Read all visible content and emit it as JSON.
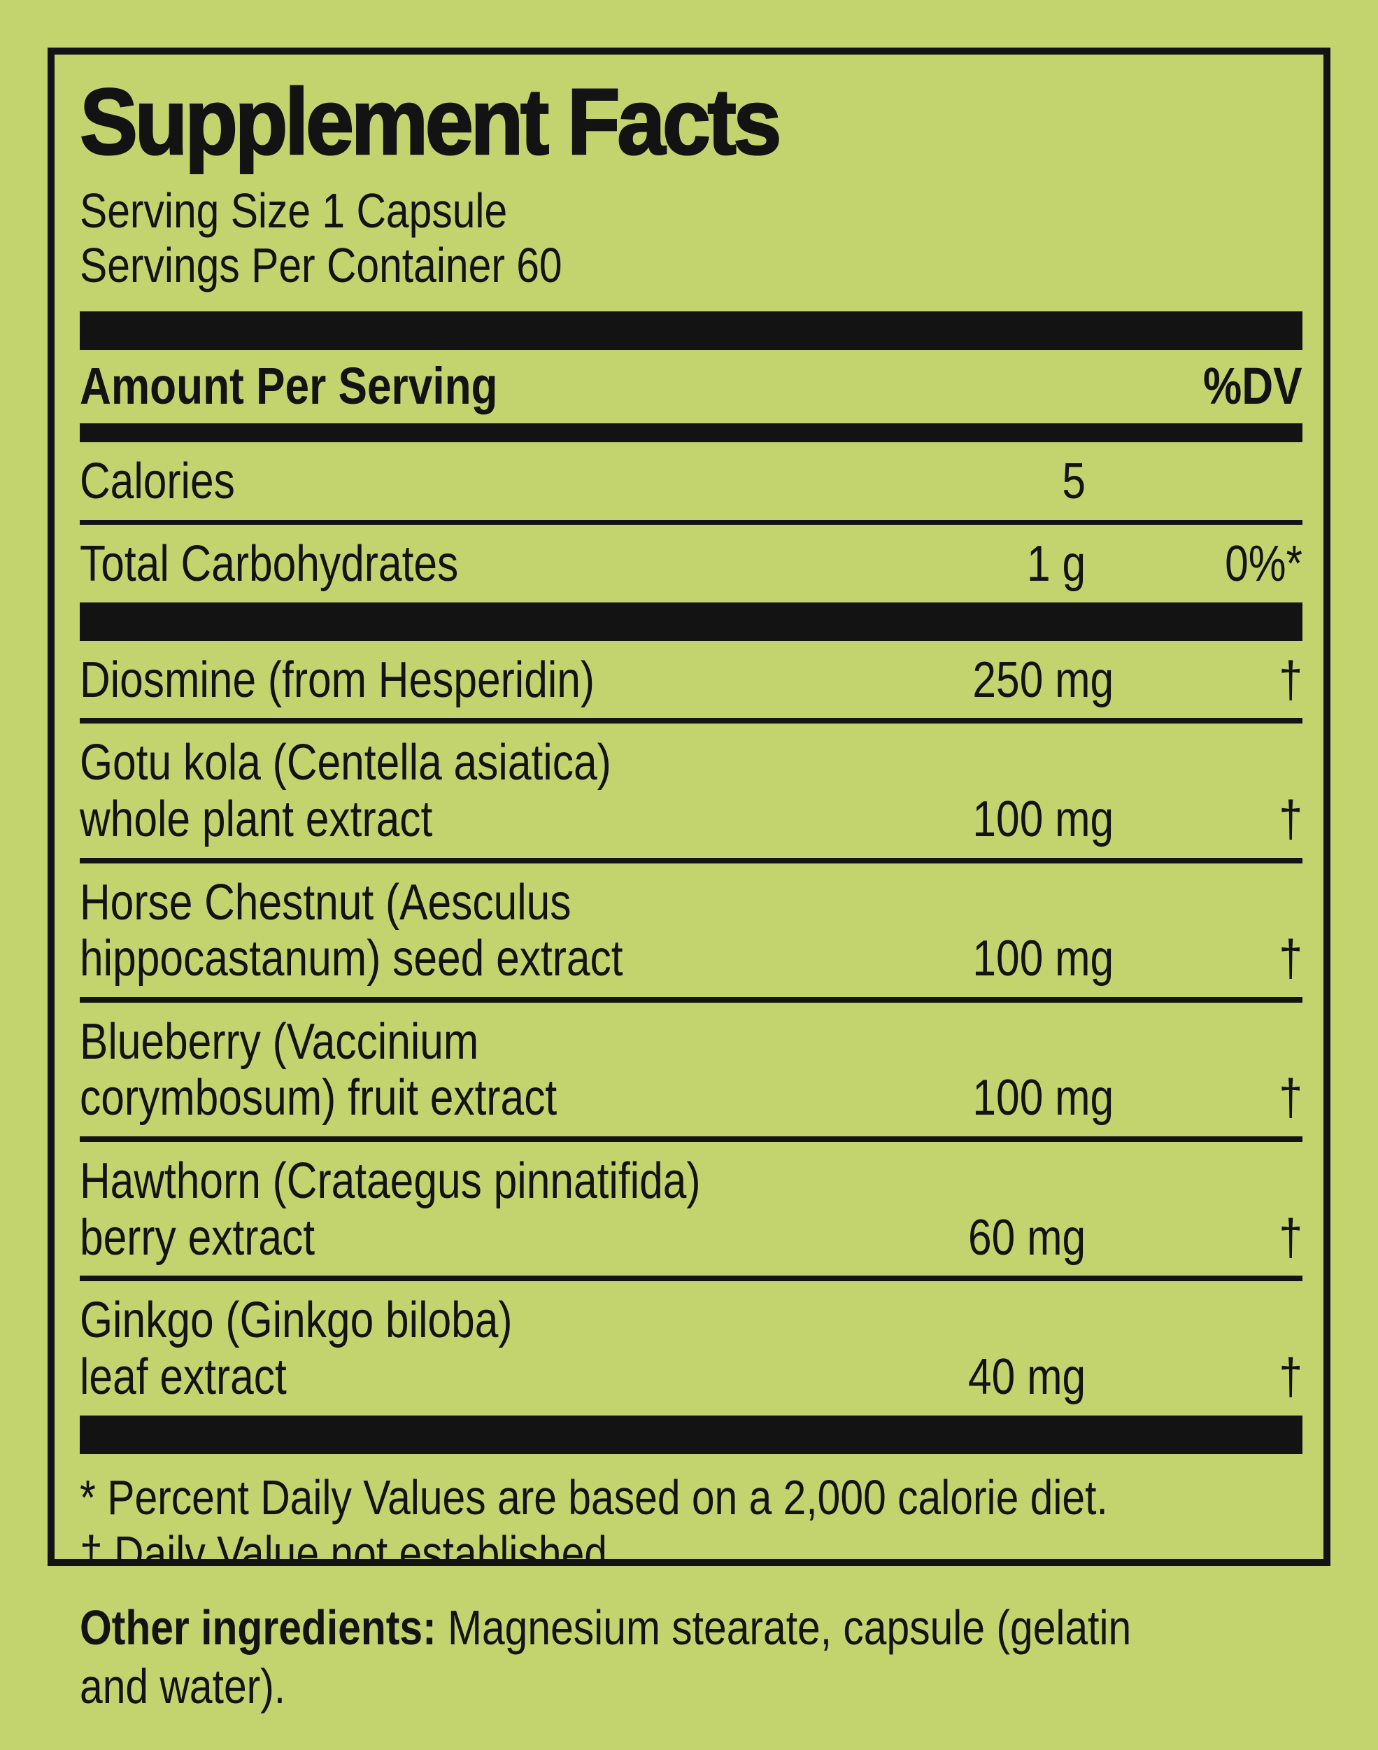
{
  "label": {
    "title": "Supplement Facts",
    "serving_size": "Serving Size 1 Capsule",
    "servings_per_container": "Servings Per Container 60",
    "columns": {
      "amount_header": "Amount Per Serving",
      "dv_header": "%DV"
    },
    "rows": [
      {
        "lines": [
          "Calories"
        ],
        "amount": "5",
        "dv": ""
      },
      {
        "lines": [
          "Total Carbohydrates"
        ],
        "amount": "1 g",
        "dv": "0%*"
      },
      {
        "lines": [
          "Diosmine (from Hesperidin)"
        ],
        "amount": "250 mg",
        "dv": "†"
      },
      {
        "lines": [
          "Gotu kola (Centella asiatica)",
          "whole plant extract"
        ],
        "amount": "100 mg",
        "dv": "†"
      },
      {
        "lines": [
          "Horse Chestnut (Aesculus",
          "hippocastanum) seed extract"
        ],
        "amount": "100 mg",
        "dv": "†"
      },
      {
        "lines": [
          "Blueberry (Vaccinium",
          "corymbosum) fruit extract"
        ],
        "amount": "100 mg",
        "dv": "†"
      },
      {
        "lines": [
          "Hawthorn (Crataegus pinnatifida)",
          "berry extract"
        ],
        "amount": "60 mg",
        "dv": "†"
      },
      {
        "lines": [
          "Ginkgo (Ginkgo biloba)",
          "leaf extract"
        ],
        "amount": "40 mg",
        "dv": "†"
      }
    ],
    "footnotes": [
      "* Percent Daily Values are based on a 2,000 calorie diet.",
      "† Daily Value not established."
    ],
    "other_ingredients": {
      "label": "Other ingredients:",
      "text_line1": "Magnesium stearate, capsule (gelatin",
      "text_line2": "and water)."
    },
    "colors": {
      "background": "#c3d46f",
      "ink": "#131313"
    }
  }
}
